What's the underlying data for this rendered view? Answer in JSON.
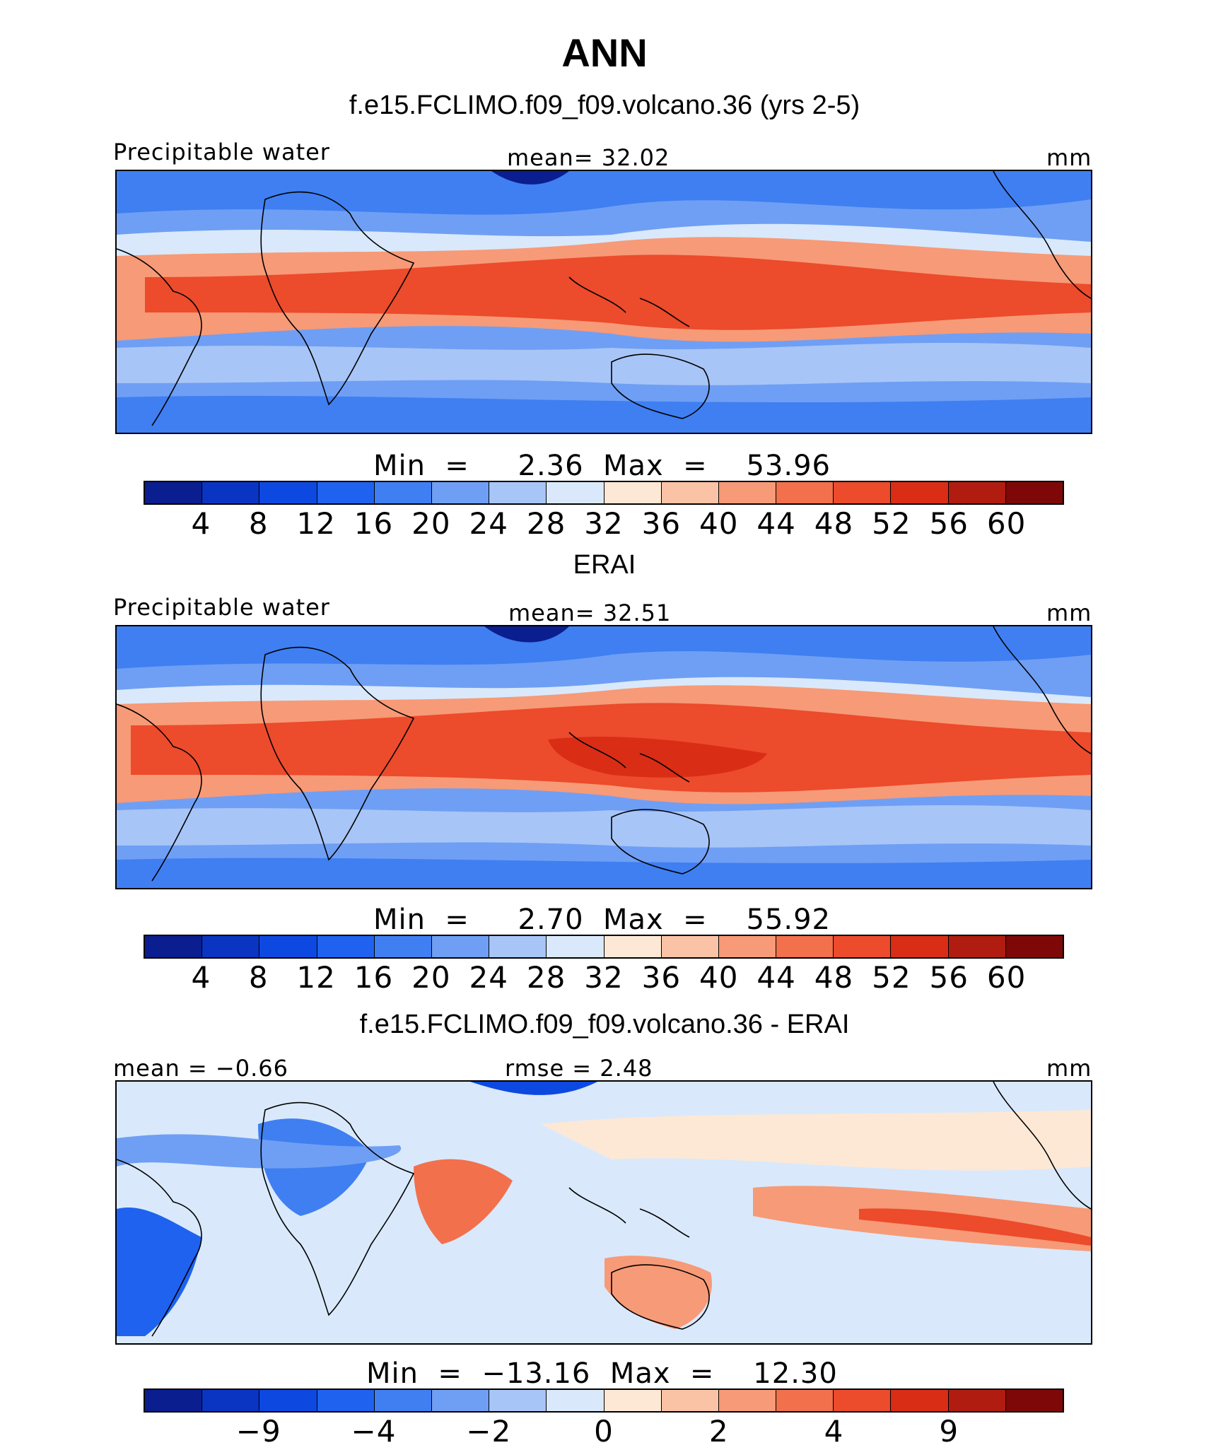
{
  "figure": {
    "title": "ANN"
  },
  "colors": {
    "scale": [
      "#0b1e8f",
      "#0a34c2",
      "#0d49e0",
      "#1f62f0",
      "#3f7ff2",
      "#6f9ff4",
      "#a8c5f7",
      "#d9e9fb",
      "#fde8d6",
      "#fbc3a6",
      "#f79a77",
      "#f2704c",
      "#ec4b2c",
      "#da2d16",
      "#b01c10",
      "#7e0808"
    ]
  },
  "panels": [
    {
      "title": "f.e15.FCLIMO.f09_f09.volcano.36 (yrs 2-5)",
      "left_label": "Precipitable water",
      "center_label": "mean=   32.02",
      "right_label": "mm",
      "minmax": "Min  =     2.36  Max  =    53.96",
      "colorbar_ticks": [
        "4",
        "8",
        "12",
        "16",
        "20",
        "24",
        "28",
        "32",
        "36",
        "40",
        "44",
        "48",
        "52",
        "56",
        "60"
      ]
    },
    {
      "title": "ERAI",
      "left_label": "Precipitable water",
      "center_label": "mean=   32.51",
      "right_label": "mm",
      "minmax": "Min  =     2.70  Max  =    55.92",
      "colorbar_ticks": [
        "4",
        "8",
        "12",
        "16",
        "20",
        "24",
        "28",
        "32",
        "36",
        "40",
        "44",
        "48",
        "52",
        "56",
        "60"
      ]
    },
    {
      "title": "f.e15.FCLIMO.f09_f09.volcano.36 - ERAI",
      "left_label": "mean  =   −0.66",
      "center_label": "rmse  =    2.48",
      "right_label": "mm",
      "minmax": "Min  =  −13.16  Max  =    12.30",
      "colorbar_ticks": [
        "−9",
        "−4",
        "−2",
        "0",
        "2",
        "4",
        "9"
      ]
    }
  ]
}
